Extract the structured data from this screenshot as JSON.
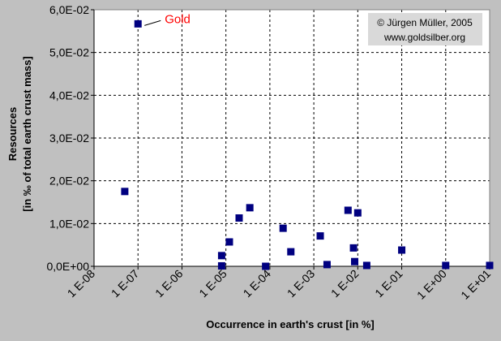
{
  "chart_data": {
    "type": "scatter",
    "title": "",
    "xlabel": "Occurrence in earth's crust [in %]",
    "ylabel_line1": "Resources",
    "ylabel_line2": "[in ‰ of total earth crust mass]",
    "xscale": "log",
    "xlim": [
      1e-08,
      10
    ],
    "ylim": [
      0,
      0.06
    ],
    "x_ticks": [
      "1 E-08",
      "1 E-07",
      "1 E-06",
      "1 E-05",
      "1 E-04",
      "1 E-03",
      "1 E-02",
      "1 E-01",
      "1 E+00",
      "1 E+01"
    ],
    "y_ticks": [
      "0,0E+00",
      "1,0E-02",
      "2,0E-02",
      "3,0E-02",
      "4,0E-02",
      "5,0E-02",
      "6,0E-02"
    ],
    "grid": true,
    "marker_color": "#000080",
    "annotation": {
      "label": "Gold",
      "color": "#ff0000",
      "x": 1e-07,
      "y": 0.0567
    },
    "copyright_line1": "© Jürgen Müller, 2005",
    "copyright_line2": "www.goldsilber.org",
    "points": [
      {
        "x": 1e-07,
        "y": 0.0567
      },
      {
        "x": 5e-08,
        "y": 0.0175
      },
      {
        "x": 8e-06,
        "y": 0.0025
      },
      {
        "x": 8e-06,
        "y": 0.0001
      },
      {
        "x": 1.2e-05,
        "y": 0.0057
      },
      {
        "x": 2e-05,
        "y": 0.0113
      },
      {
        "x": 3.5e-05,
        "y": 0.0137
      },
      {
        "x": 8e-05,
        "y": 0.0
      },
      {
        "x": 0.0002,
        "y": 0.0089
      },
      {
        "x": 0.0003,
        "y": 0.0034
      },
      {
        "x": 0.0014,
        "y": 0.0071
      },
      {
        "x": 0.002,
        "y": 0.0004
      },
      {
        "x": 0.006,
        "y": 0.0131
      },
      {
        "x": 0.008,
        "y": 0.0043
      },
      {
        "x": 0.0085,
        "y": 0.0011
      },
      {
        "x": 0.01,
        "y": 0.0125
      },
      {
        "x": 0.016,
        "y": 0.0002
      },
      {
        "x": 0.1,
        "y": 0.0038
      },
      {
        "x": 1,
        "y": 0.0002
      },
      {
        "x": 10,
        "y": 0.0002
      }
    ]
  }
}
